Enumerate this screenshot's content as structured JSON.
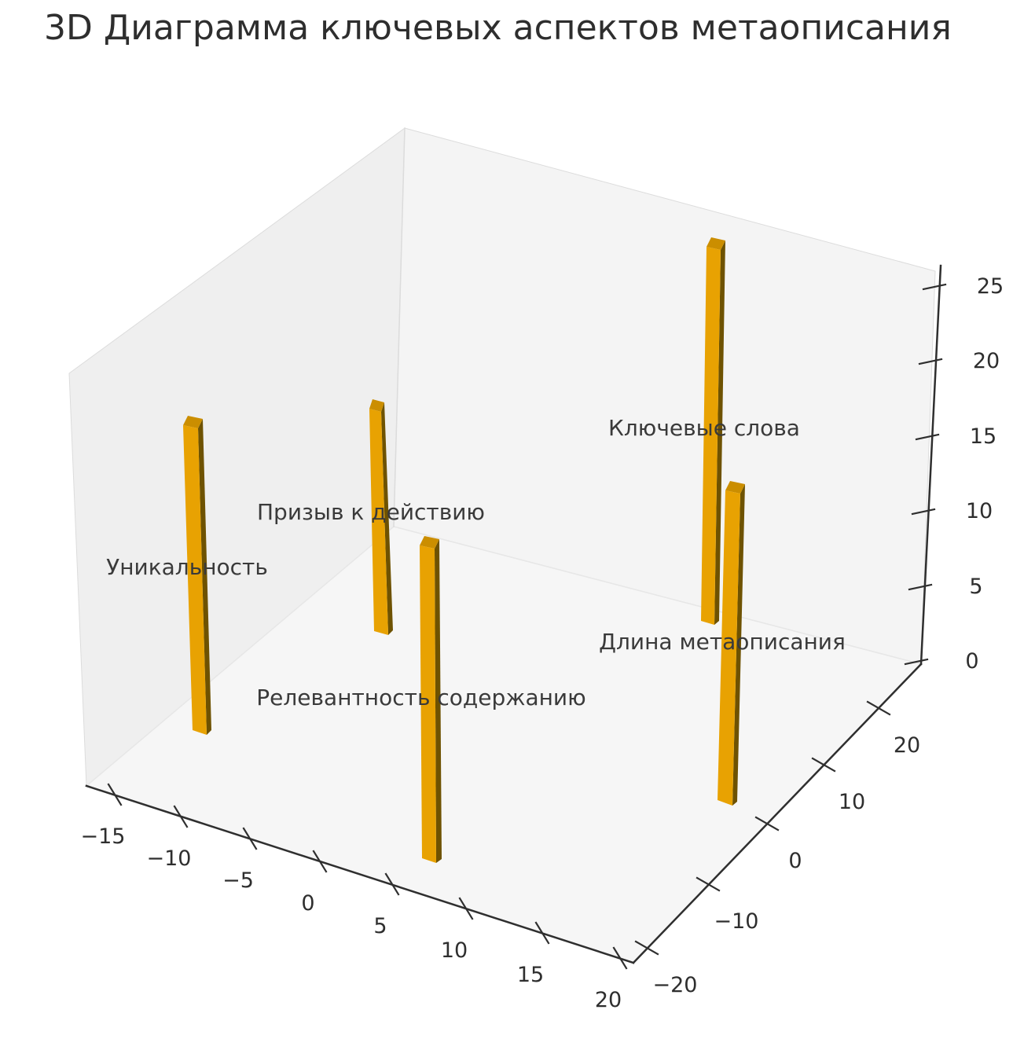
{
  "title": "3D Диаграмма ключевых аспектов метаописания",
  "chart_data": {
    "type": "bar",
    "subtype": "bar3d",
    "title": "3D Диаграмма ключевых аспектов метаописания",
    "xlabel": "",
    "ylabel": "",
    "zlabel": "",
    "grid": false,
    "legend": "none",
    "bar_width_dx": 1,
    "bar_depth_dy": 1,
    "xlim": [
      -17,
      22
    ],
    "ylim": [
      -22.5,
      27.5
    ],
    "zlim": [
      0,
      26
    ],
    "categories": [
      "Уникальность",
      "Призыв к действию",
      "Релевантность содержанию",
      "Ключевые слова",
      "Длина метаописания"
    ],
    "values": [
      20,
      15,
      20,
      25,
      20
    ],
    "bars": [
      {
        "label": "Уникальность",
        "slug": "uniqueness",
        "x": -15,
        "y": -10,
        "z0": 0,
        "height": 20
      },
      {
        "label": "Призыв к действию",
        "slug": "call-to-action",
        "x": -11,
        "y": 11,
        "z0": 0,
        "height": 15
      },
      {
        "label": "Релевантность содержанию",
        "slug": "content-relevance",
        "x": 5,
        "y": -18,
        "z0": 0,
        "height": 20
      },
      {
        "label": "Ключевые слова",
        "slug": "keywords",
        "x": 7,
        "y": 25,
        "z0": 0,
        "height": 25
      },
      {
        "label": "Длина метаописания",
        "slug": "meta-length",
        "x": 17,
        "y": 1,
        "z0": 0,
        "height": 20
      }
    ],
    "x_tick_labels": [
      "−15",
      "−10",
      "−5",
      "0",
      "5",
      "10",
      "15",
      "20"
    ],
    "y_tick_labels": [
      "−20",
      "−10",
      "0",
      "10",
      "20"
    ],
    "z_tick_labels": [
      "0",
      "5",
      "10",
      "15",
      "20",
      "25"
    ],
    "x_tick_values": [
      -15,
      -10,
      -5,
      0,
      5,
      10,
      15,
      20
    ],
    "y_tick_values": [
      -20,
      -10,
      0,
      10,
      20
    ],
    "z_tick_values": [
      0,
      5,
      10,
      15,
      20,
      25
    ]
  },
  "colors": {
    "bar_front": "#e8a202",
    "bar_side": "#6e5201",
    "bar_top": "#cb8e00",
    "pane_left": "#efefef",
    "pane_right": "#f4f4f4",
    "pane_floor": "#f6f6f6",
    "pane_edge": "#dcdcdc",
    "inner_edge": "#e7e7e7",
    "axis_line": "#2f2f2f",
    "tick_mark": "#2f2f2f",
    "tick_text": "#2e2e2e",
    "label_text": "#3a3a3a",
    "title_text": "#2e2e2e",
    "background": "#ffffff"
  }
}
